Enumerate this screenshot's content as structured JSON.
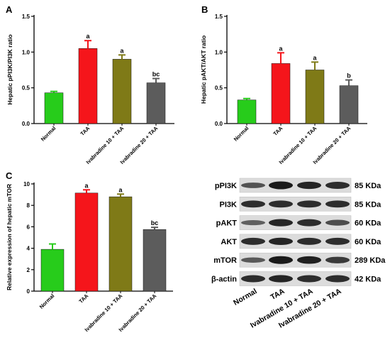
{
  "panels": [
    {
      "letter": "A"
    },
    {
      "letter": "B"
    },
    {
      "letter": "C"
    }
  ],
  "chart_data": [
    {
      "type": "bar",
      "panel": "A",
      "ylabel": "Hepatic pPI3K/PI3K ratio",
      "categories": [
        "Normal",
        "TAA",
        "Ivabradine 10 + TAA",
        "Ivabradine 20 + TAA"
      ],
      "values": [
        0.43,
        1.05,
        0.9,
        0.57
      ],
      "errors": [
        0.02,
        0.11,
        0.06,
        0.06
      ],
      "annotations": [
        "",
        "a",
        "a",
        "bc"
      ],
      "colors": [
        "#27cc1b",
        "#f5151b",
        "#7f7a17",
        "#5c5c5c"
      ],
      "ylim": [
        0,
        1.5
      ],
      "yticks": [
        0.0,
        0.5,
        1.0,
        1.5
      ]
    },
    {
      "type": "bar",
      "panel": "B",
      "ylabel": "Hepatic pAKT/AKT ratio",
      "categories": [
        "Normal",
        "TAA",
        "Ivabradine 10 + TAA",
        "Ivabradine 20 + TAA"
      ],
      "values": [
        0.33,
        0.84,
        0.75,
        0.53
      ],
      "errors": [
        0.02,
        0.15,
        0.11,
        0.08
      ],
      "annotations": [
        "",
        "a",
        "a",
        "b"
      ],
      "colors": [
        "#27cc1b",
        "#f5151b",
        "#7f7a17",
        "#5c5c5c"
      ],
      "ylim": [
        0,
        1.5
      ],
      "yticks": [
        0.0,
        0.5,
        1.0,
        1.5
      ]
    },
    {
      "type": "bar",
      "panel": "C",
      "ylabel": "Relative expression of hepatic mTOR",
      "categories": [
        "Normal",
        "TAA",
        "Ivabradine 10 + TAA",
        "Ivabradine 20 + TAA"
      ],
      "values": [
        3.9,
        9.15,
        8.8,
        5.75
      ],
      "errors": [
        0.5,
        0.3,
        0.25,
        0.2
      ],
      "annotations": [
        "",
        "a",
        "a",
        "bc"
      ],
      "colors": [
        "#27cc1b",
        "#f5151b",
        "#7f7a17",
        "#5c5c5c"
      ],
      "ylim": [
        0,
        10
      ],
      "yticks": [
        0,
        2,
        4,
        6,
        8,
        10
      ]
    }
  ],
  "blot": {
    "rows": [
      {
        "protein": "pPI3K",
        "size": "85 KDa",
        "intensity": [
          0.55,
          1.0,
          0.9,
          0.85
        ]
      },
      {
        "protein": "PI3K",
        "size": "85 KDa",
        "intensity": [
          0.85,
          0.85,
          0.85,
          0.85
        ]
      },
      {
        "protein": "pAKT",
        "size": "60 KDa",
        "intensity": [
          0.45,
          0.9,
          0.85,
          0.6
        ]
      },
      {
        "protein": "AKT",
        "size": "60 KDa",
        "intensity": [
          0.85,
          0.9,
          0.85,
          0.85
        ]
      },
      {
        "protein": "mTOR",
        "size": "289 KDa",
        "intensity": [
          0.5,
          1.0,
          0.95,
          0.75
        ]
      },
      {
        "protein": "β-actin",
        "size": "42 KDa",
        "intensity": [
          0.85,
          0.9,
          0.85,
          0.85
        ]
      }
    ],
    "lanes": [
      "Normal",
      "TAA",
      "Ivabradine 10 + TAA",
      "Ivabradine 20 + TAA"
    ]
  }
}
